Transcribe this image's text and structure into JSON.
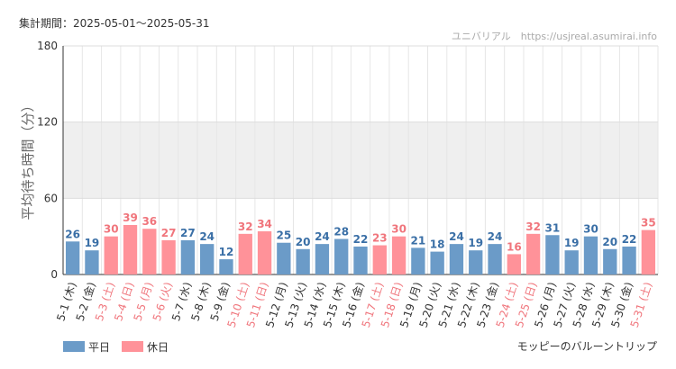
{
  "header": {
    "period": "集計期間：2025-05-01～2025-05-31",
    "source": "ユニバリアル　https://usjreal.asumirai.info"
  },
  "footer": {
    "attraction": "モッピーのバルーントリップ"
  },
  "chart_data": {
    "type": "bar",
    "title": "",
    "ylabel": "平均待ち時間（分）",
    "xlabel": "",
    "ylim": [
      0,
      180
    ],
    "yticks": [
      0,
      60,
      120,
      180
    ],
    "shaded_band": [
      60,
      120
    ],
    "grid": true,
    "legend_placement": "bottom-left",
    "categories": [
      "5-1 (木)",
      "5-2 (金)",
      "5-3 (土)",
      "5-4 (日)",
      "5-5 (月)",
      "5-6 (火)",
      "5-7 (水)",
      "5-8 (木)",
      "5-9 (金)",
      "5-10 (土)",
      "5-11 (日)",
      "5-12 (月)",
      "5-13 (火)",
      "5-14 (水)",
      "5-15 (木)",
      "5-16 (金)",
      "5-17 (土)",
      "5-18 (日)",
      "5-19 (月)",
      "5-20 (火)",
      "5-21 (水)",
      "5-22 (木)",
      "5-23 (金)",
      "5-24 (土)",
      "5-25 (日)",
      "5-26 (月)",
      "5-27 (火)",
      "5-28 (水)",
      "5-29 (木)",
      "5-30 (金)",
      "5-31 (土)"
    ],
    "values": [
      26,
      19,
      30,
      39,
      36,
      27,
      27,
      24,
      12,
      32,
      34,
      25,
      20,
      24,
      28,
      22,
      23,
      30,
      21,
      18,
      24,
      19,
      24,
      16,
      32,
      31,
      19,
      30,
      20,
      22,
      35
    ],
    "day_type": [
      "平日",
      "平日",
      "休日",
      "休日",
      "休日",
      "休日",
      "平日",
      "平日",
      "平日",
      "休日",
      "休日",
      "平日",
      "平日",
      "平日",
      "平日",
      "平日",
      "休日",
      "休日",
      "平日",
      "平日",
      "平日",
      "平日",
      "平日",
      "休日",
      "休日",
      "平日",
      "平日",
      "平日",
      "平日",
      "平日",
      "休日"
    ],
    "series": [
      {
        "name": "平日",
        "color": "#6b9bc8",
        "label_color": "#3a6fa6"
      },
      {
        "name": "休日",
        "color": "#ff9299",
        "label_color": "#f0757c"
      }
    ]
  }
}
